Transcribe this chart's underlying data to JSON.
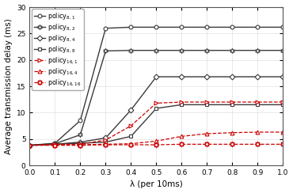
{
  "title": "",
  "xlabel": "λ (per 10ms)",
  "ylabel": "Average transmission delay (ms)",
  "xlim": [
    0,
    1.0
  ],
  "ylim": [
    0,
    30
  ],
  "yticks": [
    0,
    5,
    10,
    15,
    20,
    25,
    30
  ],
  "xticks": [
    0,
    0.1,
    0.2,
    0.3,
    0.4,
    0.5,
    0.6,
    0.7,
    0.8,
    0.9,
    1.0
  ],
  "lambda": [
    0,
    0.1,
    0.2,
    0.3,
    0.4,
    0.5,
    0.6,
    0.7,
    0.8,
    0.9,
    1.0
  ],
  "policy_8_1": [
    3.8,
    4.2,
    8.5,
    26.0,
    26.2,
    26.2,
    26.2,
    26.2,
    26.2,
    26.2,
    26.2
  ],
  "policy_8_2": [
    3.8,
    4.1,
    5.8,
    21.7,
    21.8,
    21.8,
    21.8,
    21.8,
    21.8,
    21.8,
    21.8
  ],
  "policy_8_4": [
    3.8,
    4.0,
    4.4,
    5.2,
    10.5,
    16.8,
    16.8,
    16.8,
    16.8,
    16.8,
    16.8
  ],
  "policy_8_8": [
    3.8,
    4.0,
    4.2,
    4.4,
    5.5,
    10.8,
    11.5,
    11.5,
    11.5,
    11.5,
    11.5
  ],
  "policy_16_1": [
    3.8,
    4.0,
    4.0,
    4.8,
    7.5,
    11.8,
    12.0,
    12.0,
    12.0,
    12.0,
    12.0
  ],
  "policy_16_4": [
    3.8,
    3.9,
    3.9,
    4.0,
    4.1,
    4.6,
    5.5,
    6.0,
    6.2,
    6.3,
    6.3
  ],
  "policy_16_16": [
    3.8,
    3.8,
    3.8,
    3.9,
    3.9,
    3.9,
    4.0,
    4.0,
    4.0,
    4.0,
    4.0
  ],
  "color_black": "#3a3a3a",
  "color_red": "#cc0000",
  "legend_fontsize": 5.8,
  "tick_fontsize": 6.5,
  "label_fontsize": 7.5
}
